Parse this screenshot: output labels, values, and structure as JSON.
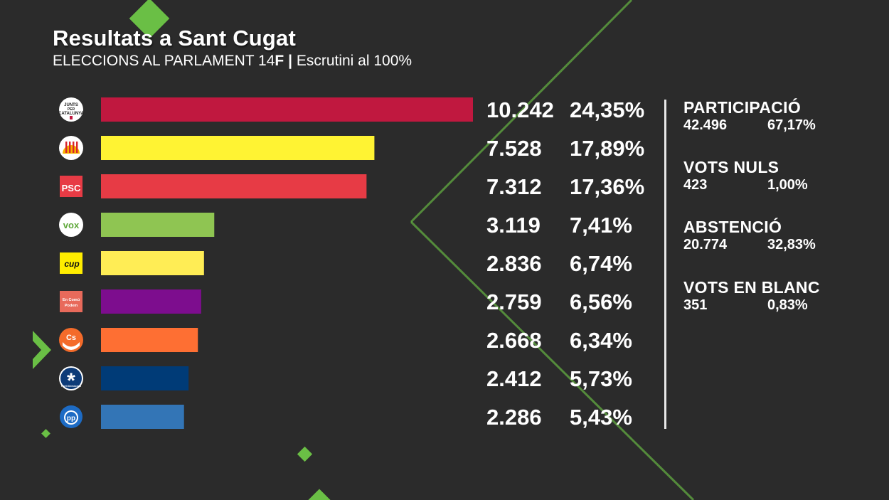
{
  "header": {
    "title": "Resultats a Sant Cugat",
    "subtitle_prefix": "ELECCIONS AL PARLAMENT 14",
    "subtitle_bold": "F",
    "subtitle_sep": "|",
    "subtitle_suffix": "Escrutini al 100%"
  },
  "colors": {
    "background": "#2b2b2b",
    "accent_green": "#6abf45"
  },
  "chart_data": {
    "type": "bar",
    "orientation": "horizontal",
    "categories": [
      "Junts per Catalunya",
      "ERC",
      "PSC",
      "Vox",
      "CUP",
      "En Comú Podem",
      "Cs",
      "PDeCAT",
      "PP"
    ],
    "values": [
      10242,
      7528,
      7312,
      3119,
      2836,
      2759,
      2668,
      2412,
      2286
    ],
    "value_labels": [
      "10.242",
      "7.528",
      "7.312",
      "3.119",
      "2.836",
      "2.759",
      "2.668",
      "2.412",
      "2.286"
    ],
    "percent_labels": [
      "24,35%",
      "17,89%",
      "17,36%",
      "7,41%",
      "6,74%",
      "6,56%",
      "6,34%",
      "5,73%",
      "5,43%"
    ],
    "colors": [
      "#c0183f",
      "#fff333",
      "#e73b45",
      "#8fc552",
      "#ffed55",
      "#7d0d8e",
      "#fe6f33",
      "#003b77",
      "#3375b6"
    ],
    "logo_icons": [
      "junts-logo-icon",
      "erc-logo-icon",
      "psc-logo-icon",
      "vox-logo-icon",
      "cup-logo-icon",
      "en-comu-podem-logo-icon",
      "cs-logo-icon",
      "pdecat-logo-icon",
      "pp-logo-icon"
    ],
    "logo_text": [
      "JUNTS PER CATALUNYA",
      "",
      "PSC",
      "VOX",
      "cup",
      "En Comú Podem",
      "Cs",
      "Partit Demòcrata",
      "PP"
    ],
    "xlim": [
      0,
      10242
    ],
    "grid": false,
    "legend": "none"
  },
  "stats": [
    {
      "label": "PARTICIPACIÓ",
      "count": "42.496",
      "pct": "67,17%"
    },
    {
      "label": "VOTS NULS",
      "count": "423",
      "pct": "1,00%"
    },
    {
      "label": "ABSTENCIÓ",
      "count": "20.774",
      "pct": "32,83%"
    },
    {
      "label": "VOTS EN BLANC",
      "count": "351",
      "pct": "0,83%"
    }
  ]
}
